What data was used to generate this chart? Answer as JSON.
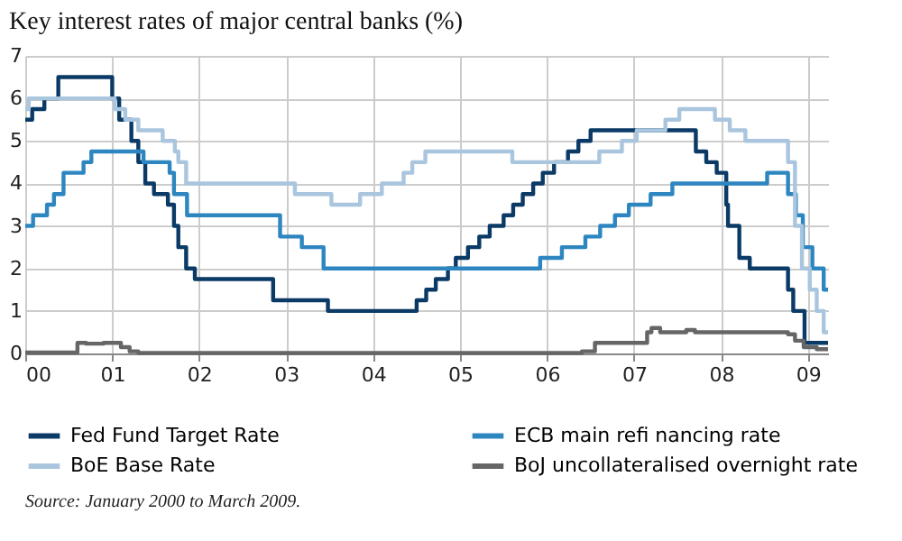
{
  "chart_data": {
    "type": "step",
    "title": "Key interest rates of major central banks (%)",
    "xlim": [
      2000,
      2009.23
    ],
    "xticks": [
      {
        "value": 2000,
        "label": "00"
      },
      {
        "value": 2001,
        "label": "01"
      },
      {
        "value": 2002,
        "label": "02"
      },
      {
        "value": 2003,
        "label": "03"
      },
      {
        "value": 2004,
        "label": "04"
      },
      {
        "value": 2005,
        "label": "05"
      },
      {
        "value": 2006,
        "label": "06"
      },
      {
        "value": 2007,
        "label": "07"
      },
      {
        "value": 2008,
        "label": "08"
      },
      {
        "value": 2009,
        "label": "09"
      }
    ],
    "ylim": [
      0,
      7
    ],
    "yticks": [
      0,
      1,
      2,
      3,
      4,
      5,
      6,
      7
    ],
    "grid": true,
    "legend": "bottom",
    "marker": "none",
    "line_style": "solid",
    "series": [
      {
        "name": "Fed Fund Target Rate",
        "color": "#0b3a66",
        "x": [
          2000.0,
          2000.08,
          2000.22,
          2000.38,
          2001.0,
          2001.08,
          2001.22,
          2001.3,
          2001.38,
          2001.48,
          2001.64,
          2001.71,
          2001.76,
          2001.85,
          2001.95,
          2002.85,
          2003.48,
          2004.5,
          2004.61,
          2004.72,
          2004.86,
          2004.95,
          2005.09,
          2005.22,
          2005.34,
          2005.5,
          2005.61,
          2005.72,
          2005.84,
          2005.95,
          2006.08,
          2006.24,
          2006.36,
          2006.5,
          2007.71,
          2007.83,
          2007.95,
          2008.06,
          2008.08,
          2008.21,
          2008.33,
          2008.77,
          2008.83,
          2008.96,
          2009.23
        ],
        "values": [
          5.5,
          5.75,
          6.0,
          6.5,
          6.0,
          5.5,
          5.0,
          4.5,
          4.0,
          3.75,
          3.5,
          3.0,
          2.5,
          2.0,
          1.75,
          1.25,
          1.0,
          1.25,
          1.5,
          1.75,
          2.0,
          2.25,
          2.5,
          2.75,
          3.0,
          3.25,
          3.5,
          3.75,
          4.0,
          4.25,
          4.5,
          4.75,
          5.0,
          5.25,
          4.75,
          4.5,
          4.25,
          3.5,
          3.0,
          2.25,
          2.0,
          1.5,
          1.0,
          0.25,
          0.25
        ]
      },
      {
        "name": "ECB main refi  nancing rate",
        "color": "#2e86c1",
        "x": [
          2000.0,
          2000.09,
          2000.25,
          2000.33,
          2000.44,
          2000.67,
          2000.76,
          2001.36,
          2001.66,
          2001.71,
          2001.86,
          2002.93,
          2003.18,
          2003.43,
          2005.92,
          2006.17,
          2006.44,
          2006.61,
          2006.78,
          2006.94,
          2007.19,
          2007.44,
          2008.53,
          2008.77,
          2008.86,
          2008.94,
          2009.05,
          2009.18,
          2009.23
        ],
        "values": [
          3.0,
          3.25,
          3.5,
          3.75,
          4.25,
          4.5,
          4.75,
          4.5,
          4.25,
          3.75,
          3.25,
          2.75,
          2.5,
          2.0,
          2.25,
          2.5,
          2.75,
          3.0,
          3.25,
          3.5,
          3.75,
          4.0,
          4.25,
          3.75,
          3.25,
          2.5,
          2.0,
          1.5,
          1.5
        ]
      },
      {
        "name": "BoE Base Rate",
        "color": "#a9c6de",
        "x": [
          2000.0,
          2000.04,
          2001.03,
          2001.15,
          2001.3,
          2001.58,
          2001.72,
          2001.76,
          2001.85,
          2003.1,
          2003.52,
          2003.85,
          2004.1,
          2004.35,
          2004.45,
          2004.6,
          2005.6,
          2006.6,
          2006.86,
          2007.03,
          2007.36,
          2007.52,
          2007.93,
          2008.1,
          2008.28,
          2008.77,
          2008.85,
          2008.93,
          2009.02,
          2009.1,
          2009.18,
          2009.23
        ],
        "values": [
          5.75,
          6.0,
          5.75,
          5.5,
          5.25,
          5.0,
          4.75,
          4.5,
          4.0,
          3.75,
          3.5,
          3.75,
          4.0,
          4.25,
          4.5,
          4.75,
          4.5,
          4.75,
          5.0,
          5.25,
          5.5,
          5.75,
          5.5,
          5.25,
          5.0,
          4.5,
          3.0,
          2.0,
          1.5,
          1.0,
          0.5,
          0.5
        ]
      },
      {
        "name": "BoJ uncollateralised overnight rate",
        "color": "#666666",
        "x": [
          2000.0,
          2000.6,
          2000.7,
          2000.9,
          2001.1,
          2001.2,
          2001.3,
          2006.4,
          2006.55,
          2007.15,
          2007.2,
          2007.3,
          2007.6,
          2007.7,
          2008.77,
          2008.85,
          2008.95,
          2009.1,
          2009.23
        ],
        "values": [
          0.02,
          0.25,
          0.23,
          0.25,
          0.15,
          0.05,
          0.01,
          0.05,
          0.25,
          0.5,
          0.6,
          0.5,
          0.55,
          0.5,
          0.45,
          0.3,
          0.15,
          0.1,
          0.1
        ]
      }
    ],
    "annotations": [
      "Source:  January 2000 to March 2009."
    ]
  }
}
